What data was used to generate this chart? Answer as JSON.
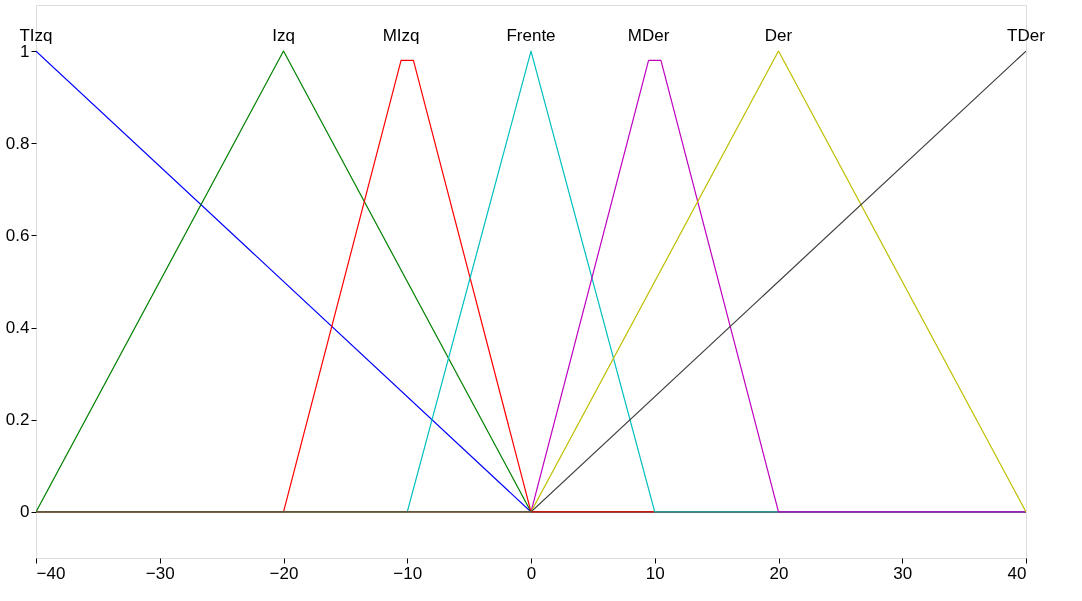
{
  "chart_data": {
    "type": "line",
    "xlim": [
      -40,
      40
    ],
    "xticks": [
      -40,
      -30,
      -20,
      -10,
      0,
      10,
      20,
      30,
      40
    ],
    "ylim": [
      -0.1,
      1.1
    ],
    "yticks": [
      0,
      0.2,
      0.4,
      0.6,
      0.8,
      1
    ],
    "grid": false,
    "legend": false,
    "marker": "none",
    "line_style": "solid",
    "series": [
      {
        "name": "TIzq",
        "color": "#0000ff",
        "x": [
          -40,
          0,
          40
        ],
        "values": [
          1,
          0,
          0
        ]
      },
      {
        "name": "Izq",
        "color": "#008000",
        "x": [
          -40,
          -20,
          0,
          40
        ],
        "values": [
          0,
          1,
          0,
          0
        ]
      },
      {
        "name": "MIzq",
        "color": "#ff0000",
        "x": [
          -40,
          -20,
          -10.5,
          -9.5,
          0,
          40
        ],
        "values": [
          0,
          0,
          0.98,
          0.98,
          0,
          0
        ]
      },
      {
        "name": "Frente",
        "color": "#00bfbf",
        "x": [
          -40,
          -10,
          0,
          10,
          40
        ],
        "values": [
          0,
          0,
          1,
          0,
          0
        ]
      },
      {
        "name": "MDer",
        "color": "#bf00bf",
        "x": [
          -40,
          0,
          9.5,
          10.5,
          20,
          40
        ],
        "values": [
          0,
          0,
          0.98,
          0.98,
          0,
          0
        ]
      },
      {
        "name": "Der",
        "color": "#bfbf00",
        "x": [
          -40,
          0,
          20,
          40
        ],
        "values": [
          0,
          0,
          1,
          0
        ]
      },
      {
        "name": "TDer",
        "color": "#404040",
        "x": [
          -40,
          0,
          40
        ],
        "values": [
          0,
          0,
          1
        ]
      }
    ]
  }
}
